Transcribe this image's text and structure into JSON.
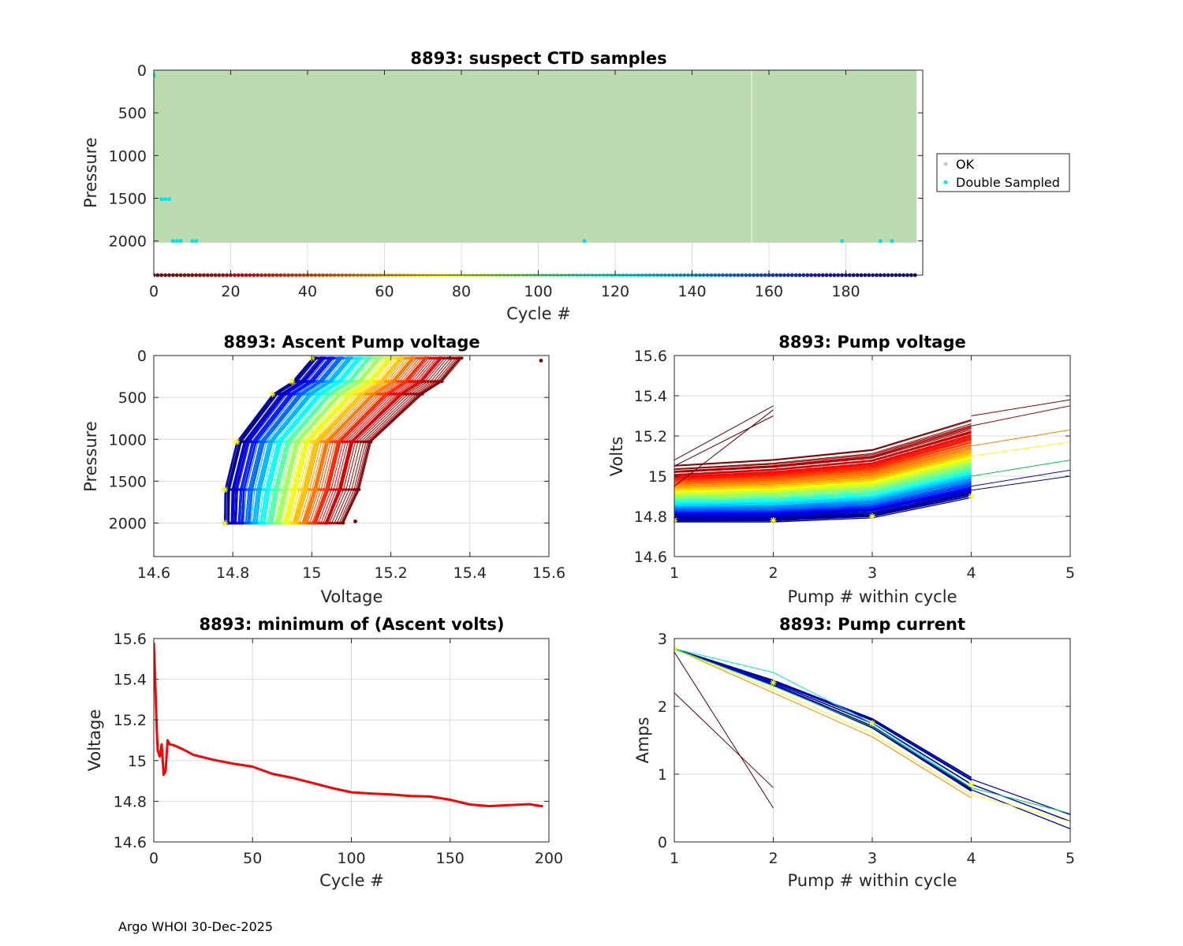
{
  "footer": "Argo WHOI 30-Dec-2025",
  "colors": {
    "ok": "#bddbb0",
    "ok_marker": "#c8c8c8",
    "double_sampled": "#00e5ee",
    "line_red": "#ff0000",
    "first_point": "#ffff00"
  },
  "chart_data": [
    {
      "id": "ctd",
      "type": "scatter",
      "title": "8893: suspect CTD samples",
      "xlabel": "Cycle #",
      "ylabel": "Pressure",
      "xlim": [
        0,
        200
      ],
      "ylim": [
        0,
        2400
      ],
      "y_reversed": true,
      "xticks": [
        0,
        20,
        40,
        60,
        80,
        100,
        120,
        140,
        160,
        180
      ],
      "yticks": [
        0,
        500,
        1000,
        1500,
        2000
      ],
      "legend": {
        "position": "outside-right",
        "entries": [
          {
            "name": "OK",
            "color": "#c8c8c8"
          },
          {
            "name": "Double Sampled",
            "color": "#00e5ee"
          }
        ]
      },
      "ok_columns": [
        {
          "x_start": 0,
          "x_end": 155,
          "p_top": 0,
          "p_bottom": 2020
        },
        {
          "x_start": 156,
          "x_end": 198,
          "p_top": 0,
          "p_bottom": 2020
        }
      ],
      "ok_early": [
        {
          "x": 0,
          "p_bottom": 80
        },
        {
          "x": 1,
          "p_bottom": 1000
        },
        {
          "x": 2,
          "p_bottom": 1510
        },
        {
          "x": 3,
          "p_bottom": 1510
        },
        {
          "x": 4,
          "p_bottom": 1510
        }
      ],
      "double_sampled": [
        [
          0,
          50
        ],
        [
          0,
          70
        ],
        [
          2,
          1510
        ],
        [
          3,
          1510
        ],
        [
          4,
          1510
        ],
        [
          5,
          2000
        ],
        [
          6,
          2000
        ],
        [
          7,
          2000
        ],
        [
          10,
          2000
        ],
        [
          11,
          2000
        ],
        [
          112,
          2000
        ],
        [
          179,
          2000
        ],
        [
          189,
          2000
        ],
        [
          192,
          2000
        ]
      ],
      "cycle_marker_pressure": 2400,
      "cycle_range": [
        0,
        198
      ]
    },
    {
      "id": "ascent",
      "type": "line",
      "title": "8893: Ascent Pump voltage",
      "xlabel": "Voltage",
      "ylabel": "Pressure",
      "xlim": [
        14.6,
        15.6
      ],
      "ylim": [
        0,
        2400
      ],
      "y_reversed": true,
      "xticks": [
        14.6,
        14.8,
        15,
        15.2,
        15.4,
        15.6
      ],
      "yticks": [
        0,
        500,
        1000,
        1500,
        2000
      ],
      "pressure_levels": [
        2000,
        1600,
        1030,
        460,
        310,
        30
      ],
      "profile_shape_volts_offset": [
        0,
        0.01,
        0.035,
        0.12,
        0.18,
        0.23
      ],
      "oldest_profile_volts": [
        15.08,
        15.12,
        15.15,
        15.28,
        15.33,
        15.38
      ],
      "newest_profile_volts": [
        14.78,
        14.78,
        14.81,
        14.9,
        14.95,
        15.0
      ],
      "outlier_points": [
        [
          15.58,
          60
        ],
        [
          15.35,
          30
        ],
        [
          15.11,
          1980
        ]
      ],
      "n_profiles": 198
    },
    {
      "id": "pumpv",
      "type": "line",
      "title": "8893: Pump voltage",
      "xlabel": "Pump # within cycle",
      "ylabel": "Volts",
      "xlim": [
        1,
        5
      ],
      "ylim": [
        14.6,
        15.6
      ],
      "xticks": [
        1,
        2,
        3,
        4,
        5
      ],
      "yticks": [
        14.6,
        14.8,
        15,
        15.2,
        15.4,
        15.6
      ],
      "oldest_cycle_volts": [
        15.05,
        15.08,
        15.13,
        15.28
      ],
      "newest_cycle_volts": [
        14.78,
        14.78,
        14.8,
        14.9
      ],
      "early_short_cycles": [
        {
          "pumps": [
            1,
            2
          ],
          "volts": [
            15.08,
            15.35
          ]
        },
        {
          "pumps": [
            1,
            2
          ],
          "volts": [
            15.05,
            15.3
          ]
        },
        {
          "pumps": [
            1,
            2
          ],
          "volts": [
            14.95,
            15.33
          ]
        }
      ],
      "fifth_pump_segments": [
        {
          "volts": [
            15.3,
            15.38
          ]
        },
        {
          "volts": [
            15.25,
            15.35
          ]
        },
        {
          "volts": [
            15.15,
            15.23
          ]
        },
        {
          "volts": [
            15.1,
            15.17
          ]
        },
        {
          "volts": [
            15.0,
            15.08
          ]
        },
        {
          "volts": [
            14.95,
            15.03
          ]
        },
        {
          "volts": [
            14.93,
            15.0
          ]
        }
      ],
      "n_cycles": 198
    },
    {
      "id": "minv",
      "type": "line",
      "title": "8893: minimum of (Ascent volts)",
      "xlabel": "Cycle #",
      "ylabel": "Voltage",
      "xlim": [
        0,
        200
      ],
      "ylim": [
        14.6,
        15.6
      ],
      "xticks": [
        0,
        50,
        100,
        150,
        200
      ],
      "yticks": [
        14.6,
        14.8,
        15,
        15.2,
        15.4,
        15.6
      ],
      "series": [
        {
          "name": "min ascent volts",
          "color": "#ff0000",
          "x": [
            0,
            0.5,
            1,
            1.5,
            2,
            3,
            4,
            5,
            6,
            7,
            8,
            10,
            15,
            20,
            30,
            40,
            50,
            60,
            70,
            80,
            90,
            100,
            110,
            120,
            130,
            140,
            150,
            160,
            170,
            180,
            190,
            197
          ],
          "y": [
            15.58,
            15.45,
            15.3,
            15.15,
            15.05,
            15.02,
            15.08,
            14.93,
            14.95,
            15.1,
            15.08,
            15.07,
            15.05,
            15.03,
            15.01,
            14.99,
            14.97,
            14.93,
            14.91,
            14.89,
            14.87,
            14.85,
            14.84,
            14.83,
            14.82,
            14.82,
            14.81,
            14.79,
            14.78,
            14.78,
            14.78,
            14.77
          ]
        }
      ]
    },
    {
      "id": "pumpi",
      "type": "line",
      "title": "8893: Pump current",
      "xlabel": "Pump # within cycle",
      "ylabel": "Amps",
      "xlim": [
        1,
        5
      ],
      "ylim": [
        0,
        3
      ],
      "xticks": [
        1,
        2,
        3,
        4,
        5
      ],
      "yticks": [
        0,
        1,
        2,
        3
      ],
      "typical_cycle_amps": [
        2.85,
        2.35,
        1.75,
        0.85,
        0.3
      ],
      "early_short_cycles": [
        {
          "pumps": [
            1,
            2
          ],
          "amps": [
            2.2,
            0.8
          ]
        },
        {
          "pumps": [
            1,
            2
          ],
          "amps": [
            2.8,
            0.5
          ]
        }
      ],
      "variant_cycles": [
        {
          "color": "#00e5ee",
          "amps": [
            2.85,
            2.5,
            1.75,
            0.8
          ]
        },
        {
          "color": "#ff8000",
          "amps": [
            2.85,
            2.2,
            1.55,
            0.65
          ]
        },
        {
          "color": "#ffff00",
          "amps": [
            2.85,
            2.25,
            1.6,
            0.7,
            0.3
          ]
        },
        {
          "color": "#00cc44",
          "amps": [
            2.85,
            2.3,
            1.7,
            0.8,
            0.42
          ]
        }
      ],
      "n_cycles": 198
    }
  ]
}
